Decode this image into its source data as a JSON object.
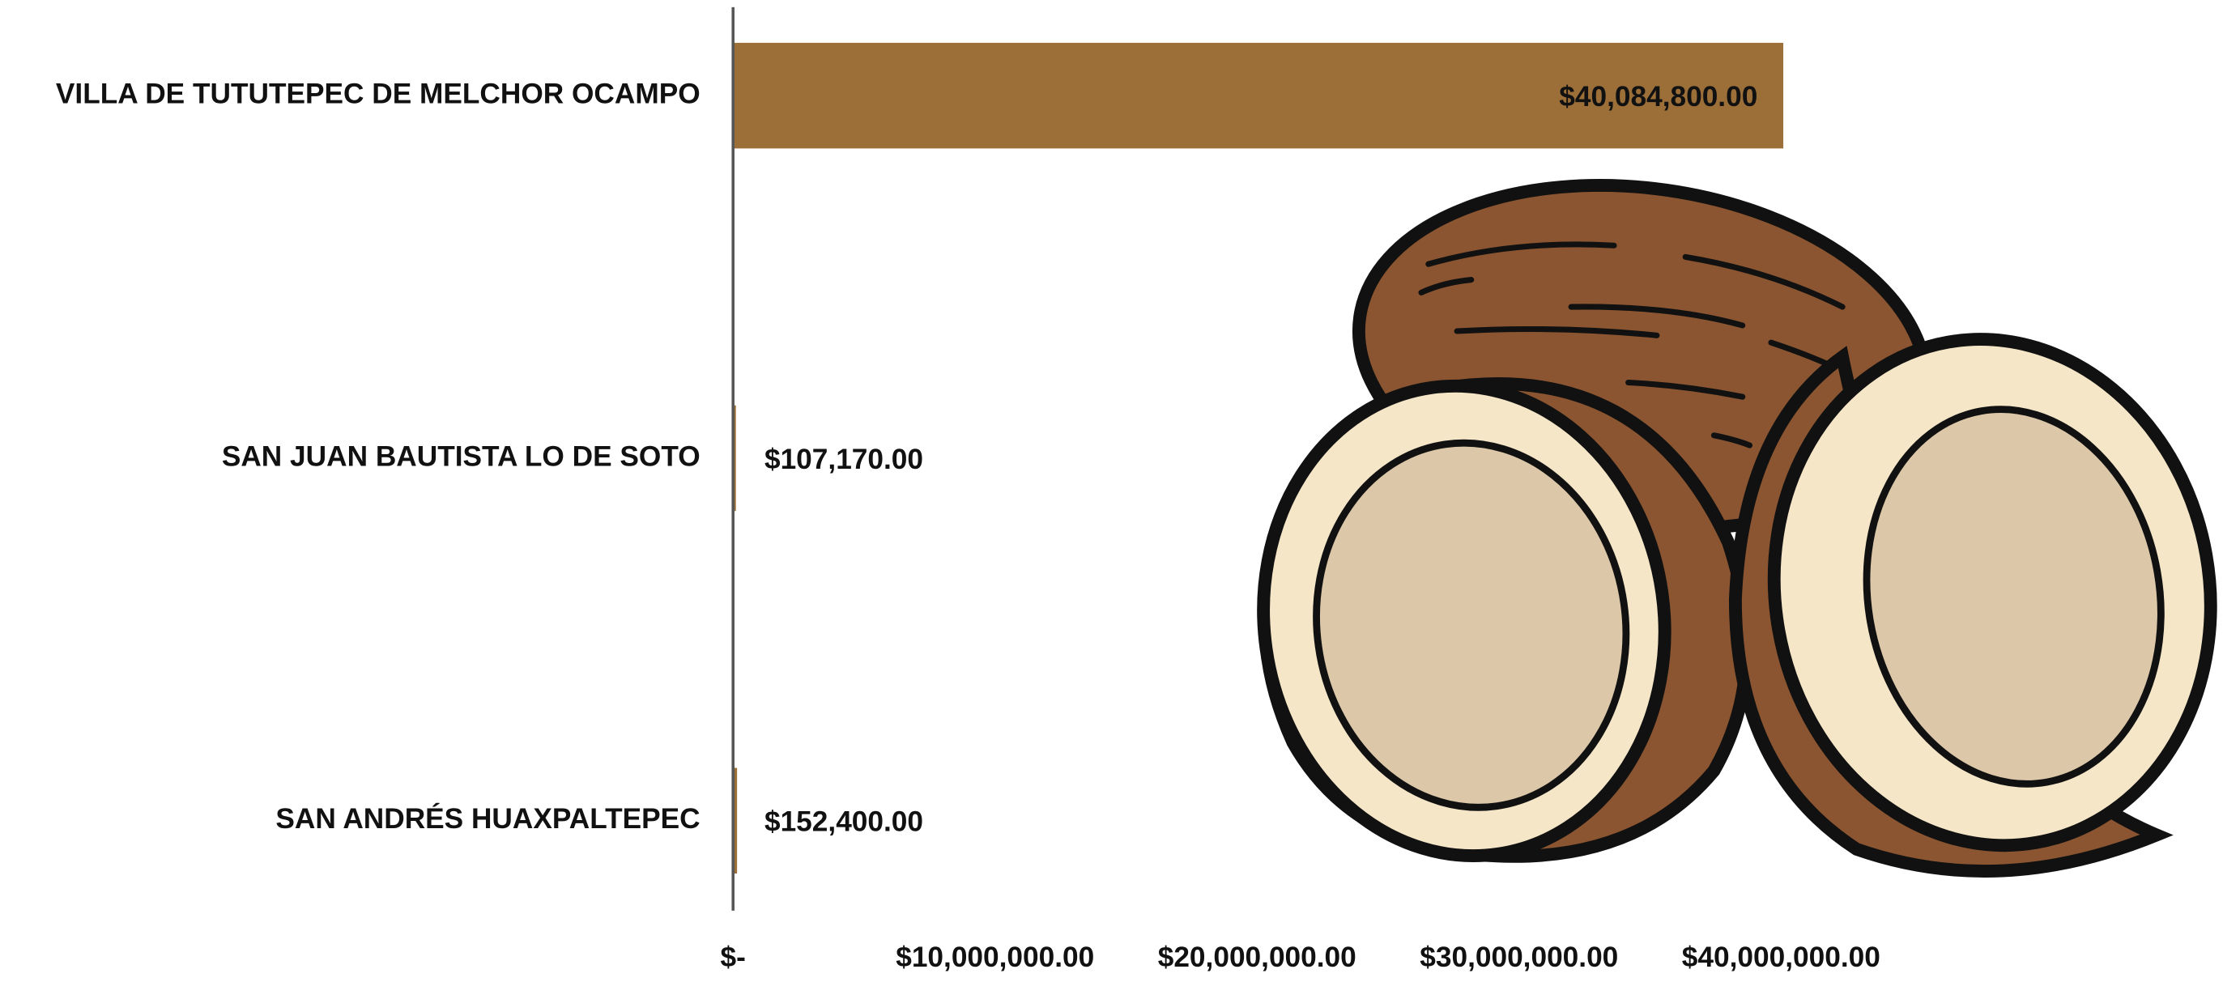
{
  "chart_data": {
    "type": "bar",
    "orientation": "horizontal",
    "categories": [
      "VILLA DE TUTUTEPEC DE MELCHOR OCAMPO",
      "SAN JUAN BAUTISTA LO DE SOTO",
      "SAN ANDRÉS HUAXPALTEPEC"
    ],
    "values": [
      40084800,
      107170,
      152400
    ],
    "value_labels": [
      "$40,084,800.00",
      "$107,170.00",
      "$152,400.00"
    ],
    "color": "#9c6e38",
    "xlim": [
      0,
      45000000
    ],
    "xticks": [
      {
        "value": 0,
        "label": "$-"
      },
      {
        "value": 10000000,
        "label": "$10,000,000.00"
      },
      {
        "value": 20000000,
        "label": "$20,000,000.00"
      },
      {
        "value": 30000000,
        "label": "$30,000,000.00"
      },
      {
        "value": 40000000,
        "label": "$40,000,000.00"
      }
    ],
    "grid": false
  }
}
